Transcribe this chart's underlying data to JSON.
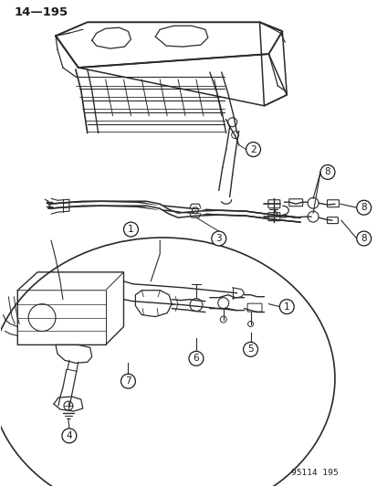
{
  "page_number": "14—195",
  "catalog_number": "95114  195",
  "background_color": "#ffffff",
  "line_color": "#2a2a2a",
  "text_color": "#1a1a1a",
  "fig_width": 4.14,
  "fig_height": 5.33,
  "dpi": 100
}
